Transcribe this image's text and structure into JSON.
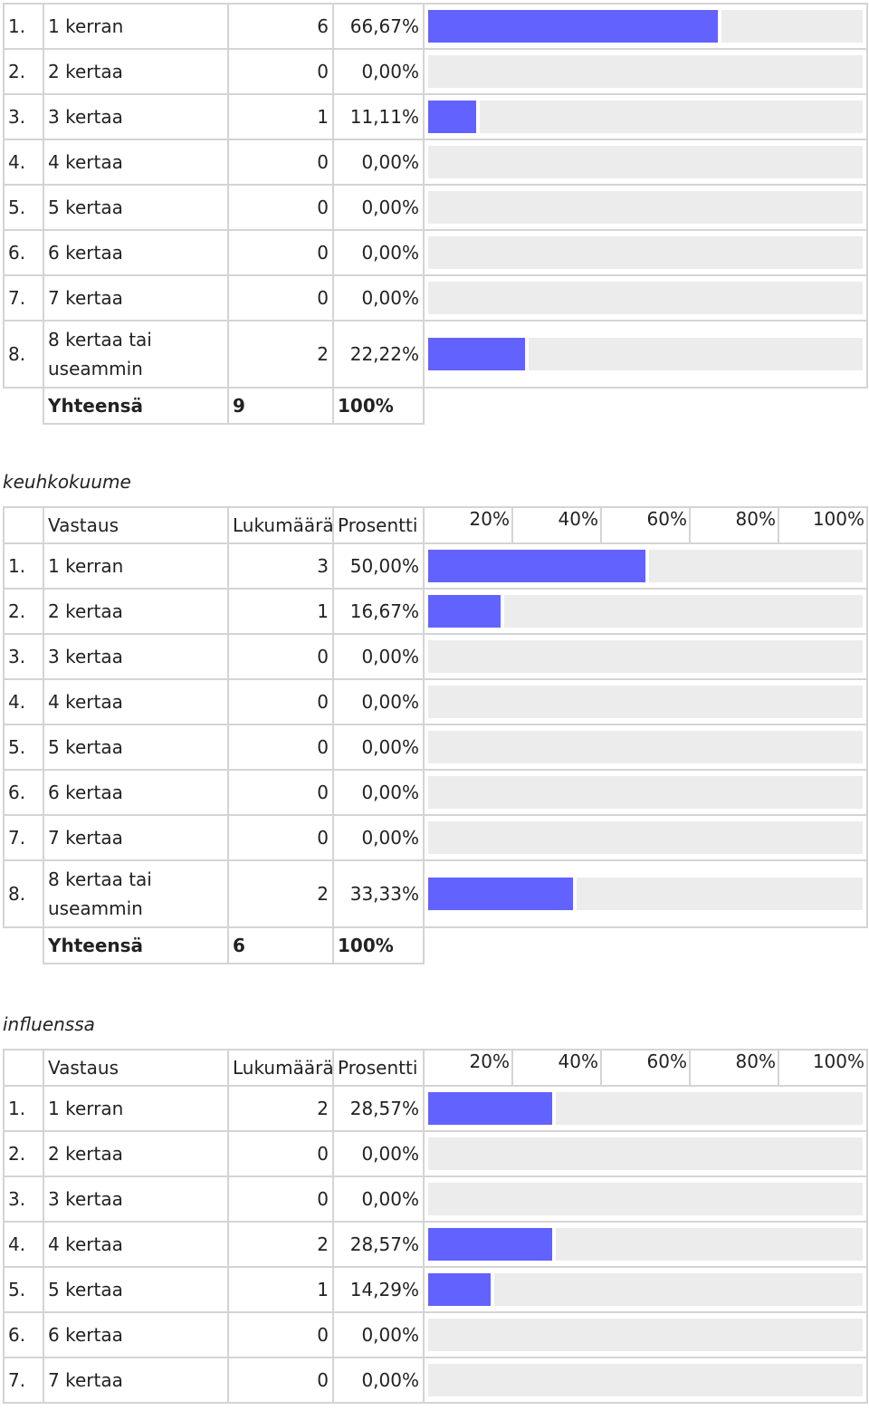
{
  "sections": [
    {
      "id": "s1",
      "title": "",
      "has_header": false,
      "rows": [
        {
          "idx": "1.",
          "label": "1 kerran",
          "count": "6",
          "percent": "66,67%",
          "value": 66.67
        },
        {
          "idx": "2.",
          "label": "2 kertaa",
          "count": "0",
          "percent": "0,00%",
          "value": 0
        },
        {
          "idx": "3.",
          "label": "3 kertaa",
          "count": "1",
          "percent": "11,11%",
          "value": 11.11
        },
        {
          "idx": "4.",
          "label": "4 kertaa",
          "count": "0",
          "percent": "0,00%",
          "value": 0
        },
        {
          "idx": "5.",
          "label": "5 kertaa",
          "count": "0",
          "percent": "0,00%",
          "value": 0
        },
        {
          "idx": "6.",
          "label": "6 kertaa",
          "count": "0",
          "percent": "0,00%",
          "value": 0
        },
        {
          "idx": "7.",
          "label": "7 kertaa",
          "count": "0",
          "percent": "0,00%",
          "value": 0
        },
        {
          "idx": "8.",
          "label": "8 kertaa tai useammin",
          "count": "2",
          "percent": "22,22%",
          "value": 22.22
        }
      ],
      "total": {
        "label": "Yhteensä",
        "count": "9",
        "percent": "100%"
      }
    },
    {
      "id": "s2",
      "title": "keuhkokuume",
      "has_header": true,
      "rows": [
        {
          "idx": "1.",
          "label": "1 kerran",
          "count": "3",
          "percent": "50,00%",
          "value": 50
        },
        {
          "idx": "2.",
          "label": "2 kertaa",
          "count": "1",
          "percent": "16,67%",
          "value": 16.67
        },
        {
          "idx": "3.",
          "label": "3 kertaa",
          "count": "0",
          "percent": "0,00%",
          "value": 0
        },
        {
          "idx": "4.",
          "label": "4 kertaa",
          "count": "0",
          "percent": "0,00%",
          "value": 0
        },
        {
          "idx": "5.",
          "label": "5 kertaa",
          "count": "0",
          "percent": "0,00%",
          "value": 0
        },
        {
          "idx": "6.",
          "label": "6 kertaa",
          "count": "0",
          "percent": "0,00%",
          "value": 0
        },
        {
          "idx": "7.",
          "label": "7 kertaa",
          "count": "0",
          "percent": "0,00%",
          "value": 0
        },
        {
          "idx": "8.",
          "label": "8 kertaa tai useammin",
          "count": "2",
          "percent": "33,33%",
          "value": 33.33
        }
      ],
      "total": {
        "label": "Yhteensä",
        "count": "6",
        "percent": "100%"
      }
    },
    {
      "id": "s3",
      "title": "influenssa",
      "has_header": true,
      "rows": [
        {
          "idx": "1.",
          "label": "1 kerran",
          "count": "2",
          "percent": "28,57%",
          "value": 28.57
        },
        {
          "idx": "2.",
          "label": "2 kertaa",
          "count": "0",
          "percent": "0,00%",
          "value": 0
        },
        {
          "idx": "3.",
          "label": "3 kertaa",
          "count": "0",
          "percent": "0,00%",
          "value": 0
        },
        {
          "idx": "4.",
          "label": "4 kertaa",
          "count": "2",
          "percent": "28,57%",
          "value": 28.57
        },
        {
          "idx": "5.",
          "label": "5 kertaa",
          "count": "1",
          "percent": "14,29%",
          "value": 14.29
        },
        {
          "idx": "6.",
          "label": "6 kertaa",
          "count": "0",
          "percent": "0,00%",
          "value": 0
        },
        {
          "idx": "7.",
          "label": "7 kertaa",
          "count": "0",
          "percent": "0,00%",
          "value": 0
        }
      ],
      "total": null
    }
  ],
  "header": {
    "answer": "Vastaus",
    "count": "Lukumäärä",
    "percent": "Prosentti",
    "scale": [
      "20%",
      "40%",
      "60%",
      "80%",
      "100%"
    ]
  },
  "colors": {
    "bar_fill": "#6262ff",
    "bar_track": "#ececec",
    "border": "#d4d4d4"
  }
}
